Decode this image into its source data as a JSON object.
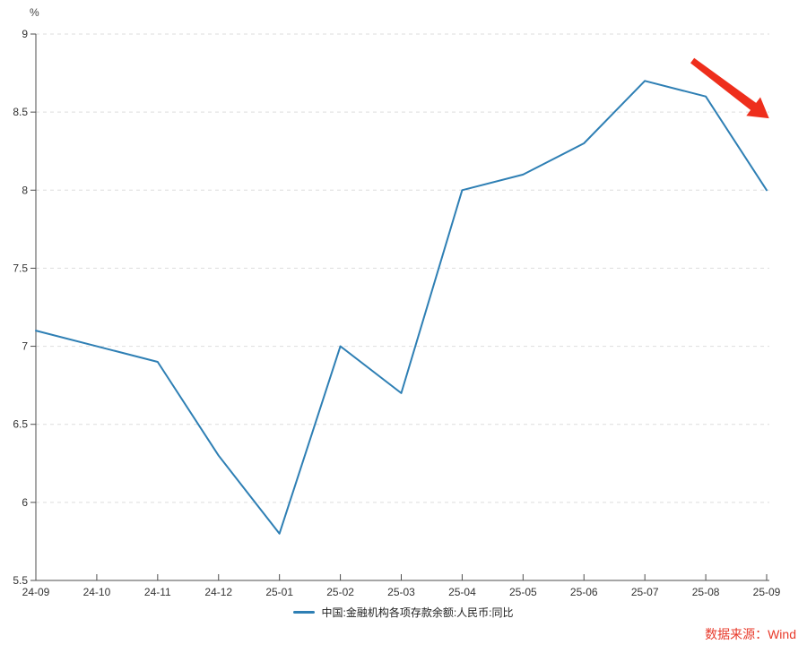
{
  "chart_data": {
    "type": "line",
    "title": "",
    "unit": "%",
    "xlabel": "",
    "ylabel": "%",
    "categories": [
      "24-09",
      "24-10",
      "24-11",
      "24-12",
      "25-01",
      "25-02",
      "25-03",
      "25-04",
      "25-05",
      "25-06",
      "25-07",
      "25-08",
      "25-09"
    ],
    "series": [
      {
        "name": "中国:金融机构各项存款余额:人民币:同比",
        "color": "#2e7fb4",
        "values": [
          7.1,
          7.0,
          6.9,
          6.3,
          5.8,
          7.0,
          6.7,
          8.0,
          8.1,
          8.3,
          8.7,
          8.6,
          8.0
        ]
      }
    ],
    "ylim": [
      5.5,
      9.0
    ],
    "ytick_step": 0.5,
    "ytick_labels": [
      "5.5",
      "6",
      "6.5",
      "7",
      "7.5",
      "8",
      "8.5",
      "9"
    ],
    "grid": "horizontal-dashed",
    "legend_position": "bottom-center",
    "annotation_arrow": {
      "description": "red downward trend arrow over 25-08 to 25-09",
      "color": "#ee2e1c",
      "from": [
        10.78,
        8.83
      ],
      "to": [
        12.04,
        8.46
      ]
    }
  },
  "legend": {
    "label": "中国:金融机构各项存款余额:人民币:同比"
  },
  "source": {
    "label": "数据来源：Wind",
    "color": "#e8392a"
  },
  "colors": {
    "background": "#ffffff",
    "axis": "#4d4d4d",
    "tick_label": "#333333",
    "gridline": "#dddddd"
  }
}
